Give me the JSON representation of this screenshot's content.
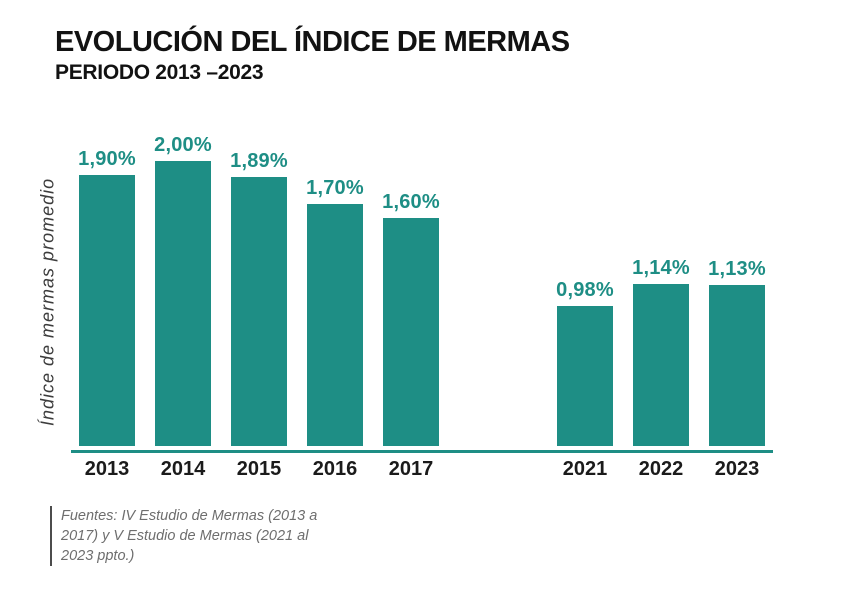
{
  "header": {
    "title": "EVOLUCIÓN DEL ÍNDICE DE MERMAS",
    "subtitle": "PERIODO 2013 –2023"
  },
  "chart_data": {
    "type": "bar",
    "title": "EVOLUCIÓN DEL ÍNDICE DE MERMAS",
    "subtitle": "PERIODO 2013 –2023",
    "ylabel": "Índice de mermas promedio",
    "xlabel": "",
    "unit": "%",
    "ylim": [
      0,
      2.1
    ],
    "grid": false,
    "legend": "none",
    "bar_color": "#1E8E85",
    "axis_color": "#1E8E85",
    "value_label_color": "#1E8E85",
    "groups": [
      {
        "categories": [
          "2013",
          "2014",
          "2015",
          "2016",
          "2017"
        ],
        "values": [
          1.9,
          2.0,
          1.89,
          1.7,
          1.6
        ],
        "labels": [
          "1,90%",
          "2,00%",
          "1,89%",
          "1,70%",
          "1,60%"
        ]
      },
      {
        "categories": [
          "2021",
          "2022",
          "2023"
        ],
        "values": [
          0.98,
          1.14,
          1.13
        ],
        "labels": [
          "0,98%",
          "1,14%",
          "1,13%"
        ]
      }
    ]
  },
  "footer": {
    "source": "Fuentes: IV Estudio de Mermas (2013 a 2017) y V Estudio de Mermas (2021 al 2023 ppto.)"
  }
}
